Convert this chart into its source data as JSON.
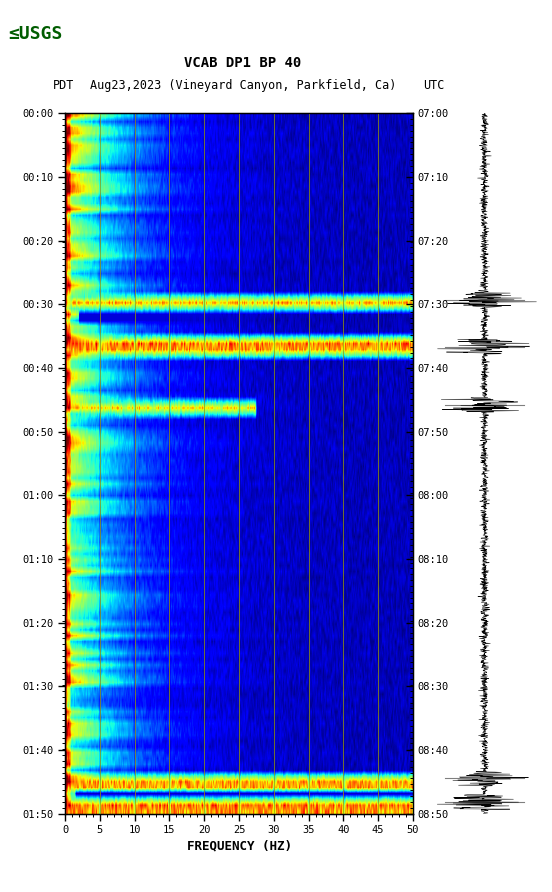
{
  "title_line1": "VCAB DP1 BP 40",
  "title_line2_left": "PDT",
  "title_line2_mid": "Aug23,2023 (Vineyard Canyon, Parkfield, Ca)",
  "title_line2_right": "UTC",
  "xlabel": "FREQUENCY (HZ)",
  "freq_min": 0,
  "freq_max": 50,
  "freq_major_ticks": [
    0,
    5,
    10,
    15,
    20,
    25,
    30,
    35,
    40,
    45,
    50
  ],
  "freq_major_labels": [
    "0",
    "5",
    "10",
    "15",
    "20",
    "25",
    "30",
    "35",
    "40",
    "45",
    "50"
  ],
  "time_labels_left": [
    "00:00",
    "00:10",
    "00:20",
    "00:30",
    "00:40",
    "00:50",
    "01:00",
    "01:10",
    "01:20",
    "01:30",
    "01:40",
    "01:50"
  ],
  "time_labels_right": [
    "07:00",
    "07:10",
    "07:20",
    "07:30",
    "07:40",
    "07:50",
    "08:00",
    "08:10",
    "08:20",
    "08:30",
    "08:40",
    "08:50"
  ],
  "n_time": 120,
  "n_freq": 500,
  "vert_grid_freqs": [
    5,
    10,
    15,
    20,
    25,
    30,
    35,
    40,
    45
  ],
  "vert_grid_color": "#9B9B00",
  "spec_bg_color": "#00008B",
  "seismogram_events": [
    32,
    40,
    50,
    114,
    118
  ],
  "fig_bg": "white"
}
